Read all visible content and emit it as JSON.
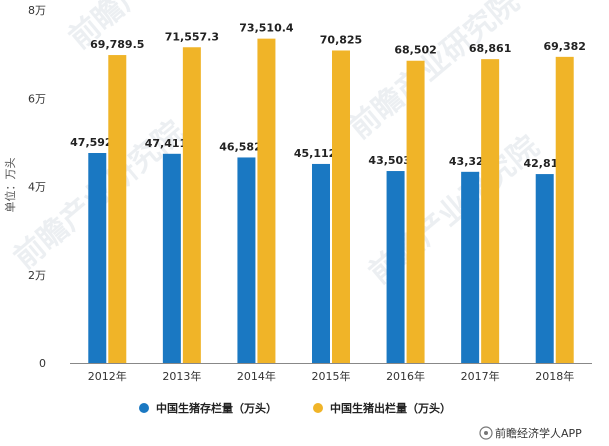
{
  "chart_data": {
    "type": "bar",
    "categories": [
      "2012年",
      "2013年",
      "2014年",
      "2015年",
      "2016年",
      "2017年",
      "2018年"
    ],
    "series": [
      {
        "name": "中国生猪存栏量（万头）",
        "color": "#1a78c2",
        "values": [
          47592.2,
          47411.3,
          46582.7,
          45112.5,
          43503.7,
          43325,
          42817
        ],
        "labels": [
          "47,592.2",
          "47,411.3",
          "46,582.7",
          "45,112.5",
          "43,503.7",
          "43,325",
          "42,817"
        ]
      },
      {
        "name": "中国生猪出栏量（万头）",
        "color": "#f0b428",
        "values": [
          69789.5,
          71557.3,
          73510.4,
          70825,
          68502,
          68861,
          69382
        ],
        "labels": [
          "69,789.5",
          "71,557.3",
          "73,510.4",
          "70,825",
          "68,502",
          "68,861",
          "69,382"
        ]
      }
    ],
    "ylabel": "单位：万头",
    "ylim": [
      0,
      80000
    ],
    "yticks": [
      {
        "value": 0,
        "label": "0"
      },
      {
        "value": 20000,
        "label": "2万"
      },
      {
        "value": 40000,
        "label": "4万"
      },
      {
        "value": 60000,
        "label": "6万"
      },
      {
        "value": 80000,
        "label": "8万"
      }
    ],
    "grid": false,
    "legend_position": "bottom"
  },
  "source_label": "前瞻经济学人APP",
  "watermark_text": "前瞻产业研究院"
}
